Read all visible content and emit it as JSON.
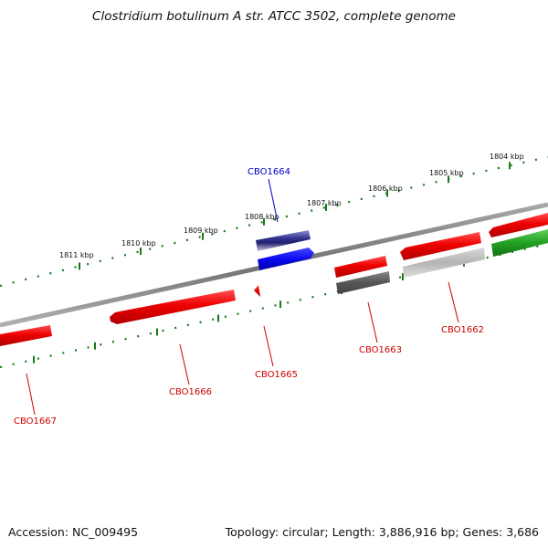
{
  "title": "Clostridium botulinum A str. ATCC 3502, complete genome",
  "footer": {
    "accession": "Accession: NC_009495",
    "topology": "Topology: circular; Length: 3,886,916 bp; Genes: 3,686"
  },
  "colors": {
    "gene_red": "#e60000",
    "gene_blue": "#1010e8",
    "gene_navy": "#202080",
    "gene_lavender": "#8080c8",
    "gene_gray": "#b8b8b8",
    "gene_dark_gray": "#606060",
    "gene_green": "#2ca02c",
    "backbone": "#888888",
    "scale_green": "#1a7a1a",
    "label_red": "#cc0000",
    "label_blue": "#0000cc"
  },
  "scale": {
    "ticks": [
      "1811 kbp",
      "1810 kbp",
      "1809 kbp",
      "1808 kbp",
      "1807 kbp",
      "1806 kbp",
      "1805 kbp",
      "1804 kbp"
    ]
  },
  "genes": [
    {
      "locus": "CBO1667",
      "color": "red"
    },
    {
      "locus": "CBO1666",
      "color": "red"
    },
    {
      "locus": "CBO1665",
      "color": "red"
    },
    {
      "locus": "CBO1664",
      "color": "blue"
    },
    {
      "locus": "CBO1663",
      "color": "red"
    },
    {
      "locus": "CBO1662",
      "color": "red"
    }
  ]
}
